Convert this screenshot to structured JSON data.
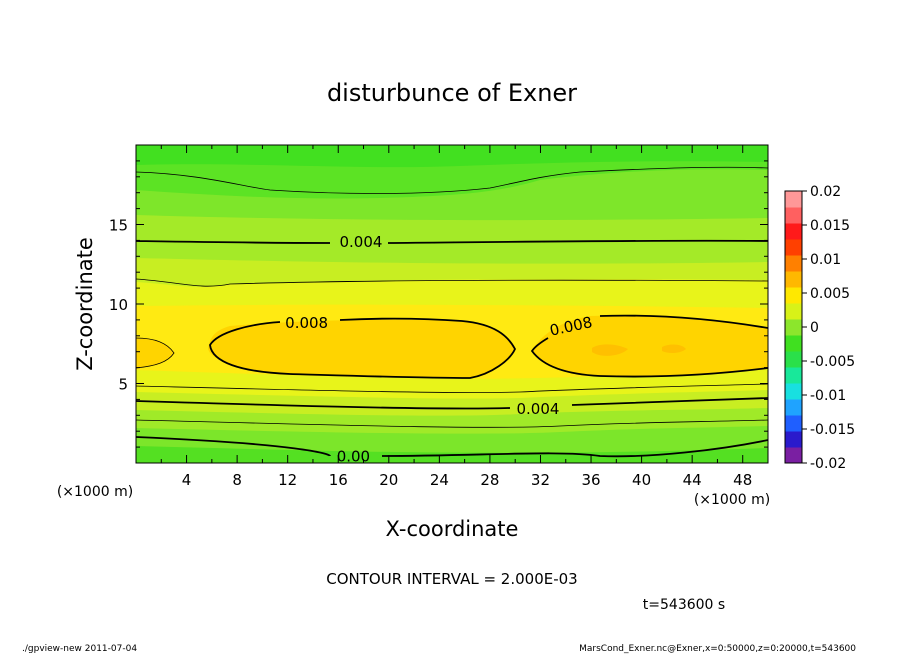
{
  "chart_data": {
    "type": "heatmap",
    "title": "disturbunce of Exner",
    "xlabel": "X-coordinate",
    "ylabel": "Z-coordinate",
    "x_unit": "(×1000 m)",
    "xlim": [
      0,
      50
    ],
    "ylim": [
      0,
      20
    ],
    "x_ticks": [
      4,
      8,
      12,
      16,
      20,
      24,
      28,
      32,
      36,
      40,
      44,
      48
    ],
    "y_ticks": [
      5,
      10,
      15
    ],
    "contour_labels": [
      {
        "text": "0.004",
        "x": 17.8,
        "z": 13.9
      },
      {
        "text": "0.008",
        "x": 13.5,
        "z": 8.8
      },
      {
        "text": "0.008",
        "x": 34.5,
        "z": 8.6
      },
      {
        "text": "0.004",
        "x": 31.8,
        "z": 3.4
      },
      {
        "text": "0.00",
        "x": 17.2,
        "z": 0.4
      }
    ],
    "colorbar": {
      "min": -0.02,
      "max": 0.02,
      "ticks": [
        "0.02",
        "0.015",
        "0.01",
        "0.005",
        "0",
        "-0.005",
        "-0.01",
        "-0.015",
        "-0.02"
      ],
      "colors": [
        "#7a1fa2",
        "#2a1acc",
        "#1f5fff",
        "#1fa3ff",
        "#18e0e0",
        "#18e89a",
        "#2ae04a",
        "#40e020",
        "#8ce62c",
        "#d8f218",
        "#ffe800",
        "#ffb800",
        "#ff8000",
        "#ff4000",
        "#ff1a1a",
        "#ff6060",
        "#ff9898"
      ]
    },
    "contour_interval_text": "CONTOUR INTERVAL = 2.000E-03",
    "time_text": "t=543600 s"
  },
  "footer": {
    "left": "./gpview-new   2011-07-04",
    "right": "MarsCond_Exner.nc@Exner,x=0:50000,z=0:20000,t=543600"
  }
}
